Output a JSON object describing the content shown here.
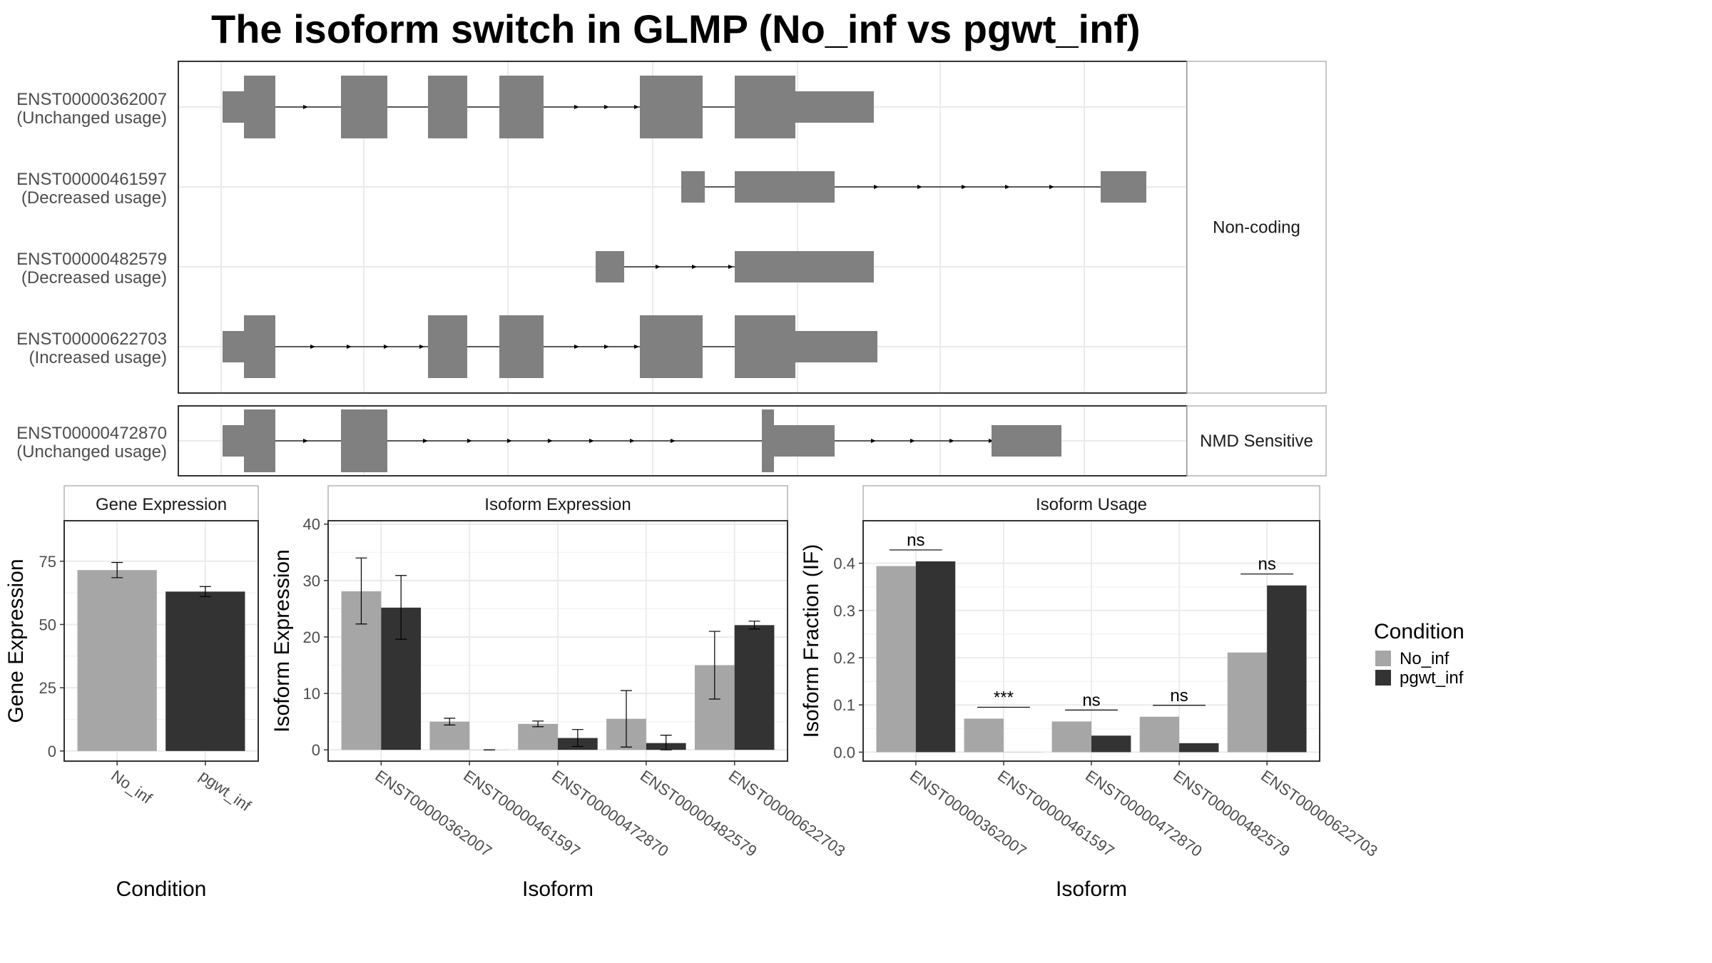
{
  "title": "The isoform switch in GLMP (No_inf vs pgwt_inf)",
  "colors": {
    "No_inf": "#a6a6a6",
    "pgwt_inf": "#333333",
    "exon": "#808080",
    "grid": "#ebebeb",
    "border": "#333333",
    "strip_border": "#b3b3b3"
  },
  "legend": {
    "title": "Condition",
    "position": "right",
    "items": [
      {
        "label": "No_inf",
        "color": "#a6a6a6"
      },
      {
        "label": "pgwt_inf",
        "color": "#333333"
      }
    ]
  },
  "chart_data": [
    {
      "type": "transcript-structure",
      "panels": [
        {
          "strip": "Non-coding",
          "transcripts": [
            {
              "id": "ENST00000362007",
              "usage": "(Unchanged usage)"
            },
            {
              "id": "ENST00000461597",
              "usage": "(Decreased usage)"
            },
            {
              "id": "ENST00000482579",
              "usage": "(Decreased usage)"
            },
            {
              "id": "ENST00000622703",
              "usage": "(Increased usage)"
            }
          ]
        },
        {
          "strip": "NMD Sensitive",
          "transcripts": [
            {
              "id": "ENST00000472870",
              "usage": "(Unchanged usage)"
            }
          ]
        }
      ]
    },
    {
      "type": "bar",
      "strip": "Gene Expression",
      "xlabel": "Condition",
      "ylabel": "Gene Expression",
      "categories": [
        "No_inf",
        "pgwt_inf"
      ],
      "values": [
        71.5,
        63
      ],
      "error": [
        [
          68.5,
          74.5
        ],
        [
          61,
          65
        ]
      ],
      "yticks": [
        0,
        25,
        50,
        75
      ],
      "ylim": [
        -4,
        91
      ],
      "grid": true
    },
    {
      "type": "bar",
      "strip": "Isoform Expression",
      "xlabel": "Isoform",
      "ylabel": "Isoform Expression",
      "categories": [
        "ENST00000362007",
        "ENST00000461597",
        "ENST00000472870",
        "ENST00000482579",
        "ENST00000622703"
      ],
      "series": [
        {
          "name": "No_inf",
          "values": [
            28.1,
            5.0,
            4.6,
            5.5,
            15.0
          ],
          "error": [
            [
              22.3,
              34.0
            ],
            [
              4.4,
              5.6
            ],
            [
              4.1,
              5.1
            ],
            [
              0.5,
              10.5
            ],
            [
              9.0,
              21.0
            ]
          ]
        },
        {
          "name": "pgwt_inf",
          "values": [
            25.2,
            0.0,
            2.1,
            1.2,
            22.1
          ],
          "error": [
            [
              19.6,
              30.9
            ],
            [
              0.0,
              0.0
            ],
            [
              0.6,
              3.6
            ],
            [
              0.0,
              2.6
            ],
            [
              21.4,
              22.8
            ]
          ]
        }
      ],
      "yticks": [
        0,
        10,
        20,
        30,
        40
      ],
      "ylim": [
        -2,
        40.6
      ],
      "grid": true
    },
    {
      "type": "bar",
      "strip": "Isoform Usage",
      "xlabel": "Isoform",
      "ylabel": "Isoform Fraction (IF)",
      "categories": [
        "ENST00000362007",
        "ENST00000461597",
        "ENST00000472870",
        "ENST00000482579",
        "ENST00000622703"
      ],
      "series": [
        {
          "name": "No_inf",
          "values": [
            0.394,
            0.071,
            0.065,
            0.075,
            0.211
          ]
        },
        {
          "name": "pgwt_inf",
          "values": [
            0.404,
            0.0,
            0.035,
            0.019,
            0.353
          ]
        }
      ],
      "significance": [
        "ns",
        "***",
        "ns",
        "ns",
        "ns"
      ],
      "yticks": [
        0.0,
        0.1,
        0.2,
        0.3,
        0.4
      ],
      "ylim": [
        -0.019,
        0.49
      ],
      "grid": true
    }
  ]
}
